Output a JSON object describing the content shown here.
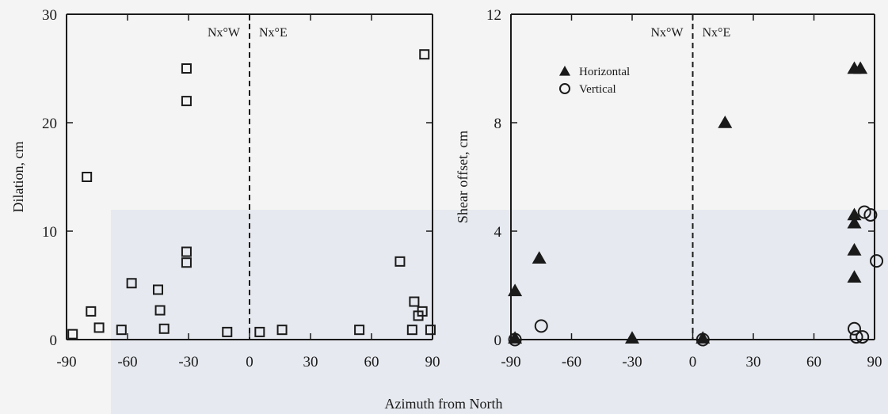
{
  "shared_xlabel": "Azimuth from North",
  "chart_data": [
    {
      "type": "scatter",
      "title": "",
      "xlabel": "",
      "ylabel": "Dilation, cm",
      "xlim": [
        -90,
        90
      ],
      "ylim": [
        0,
        30
      ],
      "xticks": [
        -90,
        -60,
        -30,
        0,
        30,
        60,
        90
      ],
      "yticks": [
        0,
        10,
        20,
        30
      ],
      "region_labels": {
        "left": "Nx°W",
        "right": "Nx°E"
      },
      "divider_x": 0,
      "grid": false,
      "series": [
        {
          "marker": "square",
          "x": [
            -87,
            -80,
            -78,
            -74,
            -63,
            -58,
            -45,
            -44,
            -42,
            -31,
            -31,
            -31,
            -31,
            -11,
            5,
            16,
            54,
            74,
            80,
            81,
            83,
            85,
            86,
            89
          ],
          "y": [
            0.5,
            15,
            2.6,
            1.1,
            0.9,
            5.2,
            4.6,
            2.7,
            1.0,
            25,
            22,
            8.1,
            7.1,
            0.7,
            0.7,
            0.9,
            0.9,
            7.2,
            0.9,
            3.5,
            2.2,
            2.6,
            26.3,
            0.9
          ]
        }
      ]
    },
    {
      "type": "scatter",
      "title": "",
      "xlabel": "",
      "ylabel": "Shear offset, cm",
      "xlim": [
        -90,
        90
      ],
      "ylim": [
        0,
        12
      ],
      "xticks": [
        -90,
        -60,
        -30,
        0,
        30,
        60,
        90
      ],
      "yticks": [
        0,
        4,
        8,
        12
      ],
      "region_labels": {
        "left": "Nx°W",
        "right": "Nx°E"
      },
      "divider_x": 0,
      "grid": false,
      "legend": {
        "location": "top-left"
      },
      "series": [
        {
          "name": "Horizontal",
          "marker": "triangle-filled",
          "x": [
            -88,
            -88,
            -76,
            -30,
            5,
            16,
            80,
            83,
            80,
            80,
            80,
            80
          ],
          "y": [
            0.05,
            1.8,
            3.0,
            0.05,
            0.05,
            8.0,
            10.0,
            10.0,
            4.6,
            4.3,
            3.3,
            2.3
          ],
          "legend_x": null
        },
        {
          "name": "Vertical",
          "marker": "circle-open",
          "x": [
            -88,
            -75,
            5,
            80,
            81,
            84,
            85,
            88,
            91
          ],
          "y": [
            0.0,
            0.5,
            0.0,
            0.4,
            0.1,
            0.1,
            4.7,
            4.6,
            2.9
          ]
        }
      ]
    }
  ]
}
